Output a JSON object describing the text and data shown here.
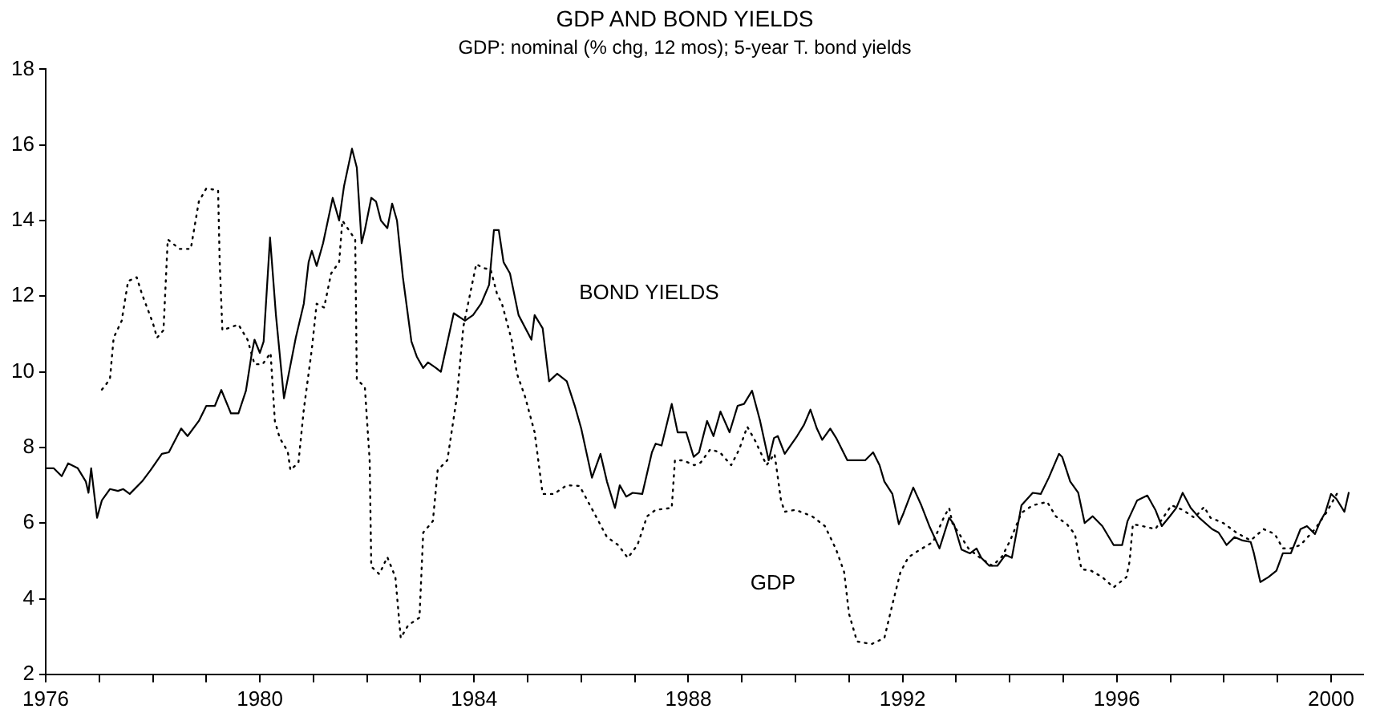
{
  "chart_data": {
    "type": "line",
    "title": "GDP AND BOND YIELDS",
    "subtitle": "GDP: nominal (% chg, 12 mos); 5-year T. bond yields",
    "xlim": [
      1976,
      2000.6
    ],
    "ylim": [
      2,
      18
    ],
    "xticks": [
      1976,
      {
        "value": 1977,
        "label": null
      },
      {
        "value": 1978,
        "label": null
      },
      {
        "value": 1979,
        "label": null
      },
      1980,
      {
        "value": 1981,
        "label": null
      },
      {
        "value": 1982,
        "label": null
      },
      {
        "value": 1983,
        "label": null
      },
      1984,
      {
        "value": 1985,
        "label": null
      },
      {
        "value": 1986,
        "label": null
      },
      {
        "value": 1987,
        "label": null
      },
      1988,
      {
        "value": 1989,
        "label": null
      },
      {
        "value": 1990,
        "label": null
      },
      {
        "value": 1991,
        "label": null
      },
      1992,
      {
        "value": 1993,
        "label": null
      },
      {
        "value": 1994,
        "label": null
      },
      {
        "value": 1995,
        "label": null
      },
      1996,
      {
        "value": 1997,
        "label": null
      },
      {
        "value": 1998,
        "label": null
      },
      {
        "value": 1999,
        "label": null
      },
      2000
    ],
    "yticks": [
      2,
      4,
      6,
      8,
      10,
      12,
      14,
      16,
      18
    ],
    "grid": false,
    "legend": false,
    "marker": "none",
    "series": [
      {
        "name": "BOND YIELDS",
        "color": "#000000",
        "line_style": "solid",
        "x": [
          1976,
          1976.15,
          1976.3,
          1976.42,
          1976.6,
          1976.75,
          1976.8,
          1976.85,
          1976.96,
          1977.05,
          1977.2,
          1977.35,
          1977.45,
          1977.57,
          1977.8,
          1977.96,
          1978.17,
          1978.3,
          1978.53,
          1978.65,
          1978.86,
          1979.0,
          1979.16,
          1979.28,
          1979.46,
          1979.6,
          1979.74,
          1979.85,
          1979.9,
          1980.0,
          1980.07,
          1980.19,
          1980.3,
          1980.45,
          1980.67,
          1980.82,
          1980.91,
          1980.97,
          1981.06,
          1981.18,
          1981.36,
          1981.48,
          1981.57,
          1981.72,
          1981.81,
          1981.9,
          1981.96,
          1982.08,
          1982.17,
          1982.26,
          1982.38,
          1982.47,
          1982.56,
          1982.67,
          1982.83,
          1982.93,
          1983.05,
          1983.14,
          1983.29,
          1983.38,
          1983.62,
          1983.83,
          1983.98,
          1984.13,
          1984.28,
          1984.37,
          1984.46,
          1984.55,
          1984.67,
          1984.83,
          1985.07,
          1985.13,
          1985.28,
          1985.4,
          1985.55,
          1985.73,
          1985.88,
          1986.0,
          1986.2,
          1986.36,
          1986.48,
          1986.63,
          1986.72,
          1986.84,
          1986.96,
          1987.14,
          1987.32,
          1987.39,
          1987.5,
          1987.69,
          1987.8,
          1987.96,
          1988.1,
          1988.2,
          1988.35,
          1988.47,
          1988.6,
          1988.77,
          1988.92,
          1989.04,
          1989.19,
          1989.34,
          1989.5,
          1989.6,
          1989.67,
          1989.8,
          1990.03,
          1990.16,
          1990.28,
          1990.4,
          1990.5,
          1990.65,
          1990.76,
          1990.97,
          1991.12,
          1991.3,
          1991.45,
          1991.57,
          1991.66,
          1991.81,
          1991.93,
          1992.02,
          1992.2,
          1992.35,
          1992.5,
          1992.69,
          1992.87,
          1992.96,
          1993.1,
          1993.26,
          1993.38,
          1993.47,
          1993.62,
          1993.77,
          1993.92,
          1994.04,
          1994.22,
          1994.43,
          1994.58,
          1994.73,
          1994.92,
          1994.98,
          1995.13,
          1995.28,
          1995.4,
          1995.55,
          1995.73,
          1995.94,
          1996.1,
          1996.2,
          1996.38,
          1996.57,
          1996.72,
          1996.84,
          1996.99,
          1997.11,
          1997.23,
          1997.38,
          1997.54,
          1997.78,
          1997.9,
          1998.05,
          1998.2,
          1998.35,
          1998.5,
          1998.56,
          1998.68,
          1998.83,
          1998.98,
          1999.1,
          1999.25,
          1999.43,
          1999.55,
          1999.7,
          1999.8,
          1999.89,
          2000.0,
          2000.1,
          2000.25,
          2000.33
        ],
        "values": [
          7.45,
          7.45,
          7.24,
          7.58,
          7.45,
          7.1,
          6.8,
          7.45,
          6.14,
          6.6,
          6.9,
          6.85,
          6.9,
          6.77,
          7.1,
          7.4,
          7.83,
          7.87,
          8.5,
          8.3,
          8.7,
          9.1,
          9.1,
          9.52,
          8.9,
          8.9,
          9.5,
          10.5,
          10.85,
          10.5,
          10.8,
          13.55,
          11.5,
          9.3,
          10.9,
          11.8,
          12.9,
          13.2,
          12.8,
          13.4,
          14.6,
          14.0,
          14.9,
          15.9,
          15.4,
          13.4,
          13.75,
          14.6,
          14.5,
          14.0,
          13.8,
          14.45,
          14.0,
          12.5,
          10.8,
          10.4,
          10.1,
          10.25,
          10.1,
          10.0,
          11.55,
          11.35,
          11.5,
          11.8,
          12.3,
          13.75,
          13.75,
          12.9,
          12.6,
          11.5,
          10.85,
          11.5,
          11.15,
          9.75,
          9.95,
          9.75,
          9.1,
          8.5,
          7.2,
          7.83,
          7.1,
          6.4,
          7.0,
          6.7,
          6.8,
          6.77,
          7.87,
          8.1,
          8.05,
          9.15,
          8.4,
          8.4,
          7.75,
          7.87,
          8.7,
          8.3,
          8.95,
          8.4,
          9.1,
          9.15,
          9.5,
          8.7,
          7.66,
          8.25,
          8.3,
          7.83,
          8.3,
          8.6,
          9.0,
          8.5,
          8.2,
          8.5,
          8.25,
          7.66,
          7.66,
          7.66,
          7.87,
          7.53,
          7.1,
          6.77,
          5.97,
          6.27,
          6.94,
          6.47,
          5.92,
          5.33,
          6.14,
          5.97,
          5.3,
          5.2,
          5.33,
          5.08,
          4.87,
          4.87,
          5.16,
          5.08,
          6.47,
          6.8,
          6.77,
          7.2,
          7.83,
          7.75,
          7.1,
          6.8,
          6.0,
          6.18,
          5.92,
          5.42,
          5.42,
          6.05,
          6.6,
          6.73,
          6.35,
          5.92,
          6.18,
          6.4,
          6.8,
          6.4,
          6.14,
          5.84,
          5.75,
          5.42,
          5.63,
          5.54,
          5.5,
          5.2,
          4.44,
          4.57,
          4.74,
          5.2,
          5.2,
          5.84,
          5.92,
          5.71,
          6.05,
          6.27,
          6.77,
          6.64,
          6.3,
          6.8
        ]
      },
      {
        "name": "GDP",
        "color": "#000000",
        "line_style": "dotted",
        "x": [
          1977.05,
          1977.2,
          1977.27,
          1977.42,
          1977.54,
          1977.7,
          1977.8,
          1978.0,
          1978.08,
          1978.2,
          1978.28,
          1978.5,
          1978.71,
          1978.77,
          1978.86,
          1979.0,
          1979.22,
          1979.25,
          1979.3,
          1979.6,
          1979.77,
          1979.9,
          1980.05,
          1980.2,
          1980.28,
          1980.37,
          1980.52,
          1980.57,
          1980.72,
          1980.82,
          1980.97,
          1981.06,
          1981.2,
          1981.33,
          1981.48,
          1981.54,
          1981.78,
          1981.81,
          1981.96,
          1982.05,
          1982.08,
          1982.23,
          1982.38,
          1982.53,
          1982.63,
          1982.77,
          1982.98,
          1983.05,
          1983.23,
          1983.32,
          1983.5,
          1983.68,
          1983.8,
          1984.04,
          1984.16,
          1984.31,
          1984.43,
          1984.52,
          1984.7,
          1984.8,
          1984.95,
          1985.13,
          1985.28,
          1985.49,
          1985.73,
          1985.97,
          1986.24,
          1986.48,
          1986.69,
          1986.87,
          1987.05,
          1987.23,
          1987.39,
          1987.69,
          1987.75,
          1987.9,
          1988.11,
          1988.23,
          1988.41,
          1988.59,
          1988.8,
          1988.95,
          1989.1,
          1989.25,
          1989.46,
          1989.61,
          1989.73,
          1989.8,
          1990.0,
          1990.31,
          1990.55,
          1990.76,
          1990.91,
          1991.0,
          1991.15,
          1991.42,
          1991.66,
          1991.81,
          1991.96,
          1992.11,
          1992.33,
          1992.57,
          1992.78,
          1992.87,
          1992.93,
          1993.23,
          1993.41,
          1993.68,
          1993.86,
          1994.01,
          1994.22,
          1994.43,
          1994.7,
          1994.86,
          1995.07,
          1995.22,
          1995.28,
          1995.34,
          1995.52,
          1995.73,
          1995.94,
          1996.18,
          1996.24,
          1996.3,
          1996.48,
          1996.72,
          1997.02,
          1997.23,
          1997.45,
          1997.63,
          1997.75,
          1997.99,
          1998.23,
          1998.5,
          1998.74,
          1998.95,
          1999.1,
          1999.25,
          1999.43,
          1999.7,
          1999.91,
          2000.16
        ],
        "values": [
          9.53,
          9.8,
          10.9,
          11.35,
          12.4,
          12.5,
          12.05,
          11.3,
          10.9,
          11.1,
          13.5,
          13.25,
          13.25,
          13.75,
          14.5,
          14.85,
          14.8,
          12.9,
          11.1,
          11.25,
          10.85,
          10.2,
          10.2,
          10.5,
          8.7,
          8.25,
          7.9,
          7.4,
          7.6,
          9.0,
          10.6,
          11.8,
          11.7,
          12.6,
          12.9,
          14.0,
          13.5,
          9.8,
          9.6,
          7.65,
          4.85,
          4.65,
          5.1,
          4.57,
          2.96,
          3.3,
          3.5,
          5.75,
          6.05,
          7.4,
          7.66,
          9.35,
          11.2,
          12.85,
          12.75,
          12.7,
          12.05,
          11.8,
          10.85,
          9.95,
          9.35,
          8.4,
          6.77,
          6.77,
          7.0,
          6.98,
          6.27,
          5.63,
          5.42,
          5.08,
          5.42,
          6.18,
          6.35,
          6.4,
          7.66,
          7.66,
          7.53,
          7.6,
          7.95,
          7.87,
          7.53,
          7.95,
          8.55,
          8.17,
          7.53,
          7.83,
          6.6,
          6.3,
          6.35,
          6.18,
          5.92,
          5.3,
          4.7,
          3.6,
          2.87,
          2.8,
          2.96,
          3.85,
          4.7,
          5.1,
          5.3,
          5.5,
          6.18,
          6.4,
          6.0,
          5.33,
          5.12,
          4.87,
          5.12,
          5.54,
          6.27,
          6.47,
          6.56,
          6.18,
          5.97,
          5.7,
          5.2,
          4.78,
          4.74,
          4.57,
          4.3,
          4.57,
          5.0,
          5.97,
          5.92,
          5.84,
          6.47,
          6.35,
          6.14,
          6.43,
          6.14,
          6.0,
          5.75,
          5.54,
          5.84,
          5.71,
          5.33,
          5.33,
          5.42,
          5.84,
          6.27,
          6.9
        ]
      }
    ]
  }
}
